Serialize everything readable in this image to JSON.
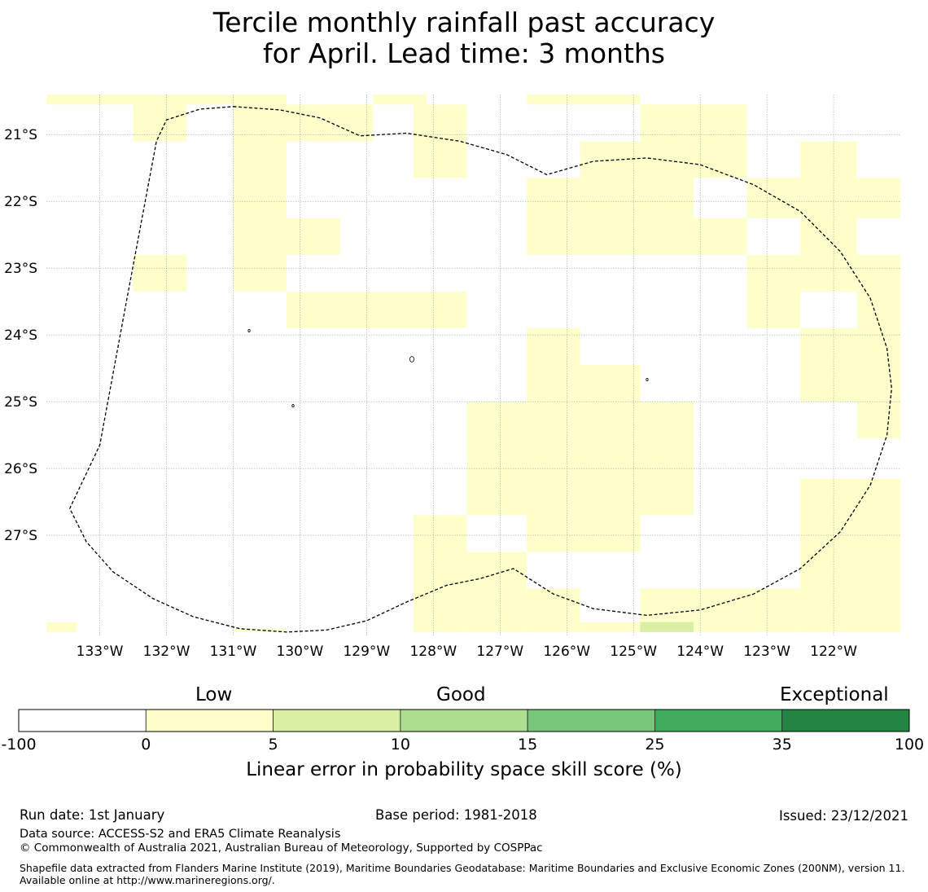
{
  "title": {
    "line1": "Tercile monthly rainfall past accuracy",
    "line2": "for April. Lead time: 3 months"
  },
  "map": {
    "lon_range": [
      -133.8,
      -121.0
    ],
    "lat_range": [
      -28.5,
      -20.4
    ],
    "lat_ticks": [
      {
        "value": -21,
        "label": "21°S"
      },
      {
        "value": -22,
        "label": "22°S"
      },
      {
        "value": -23,
        "label": "23°S"
      },
      {
        "value": -24,
        "label": "24°S"
      },
      {
        "value": -25,
        "label": "25°S"
      },
      {
        "value": -26,
        "label": "26°S"
      },
      {
        "value": -27,
        "label": "27°S"
      }
    ],
    "lon_ticks": [
      {
        "value": -133,
        "label": "133°W"
      },
      {
        "value": -132,
        "label": "132°W"
      },
      {
        "value": -131,
        "label": "131°W"
      },
      {
        "value": -130,
        "label": "130°W"
      },
      {
        "value": -129,
        "label": "129°W"
      },
      {
        "value": -128,
        "label": "128°W"
      },
      {
        "value": -127,
        "label": "127°W"
      },
      {
        "value": -126,
        "label": "126°W"
      },
      {
        "value": -125,
        "label": "125°W"
      },
      {
        "value": -124,
        "label": "124°W"
      },
      {
        "value": -123,
        "label": "123°W"
      },
      {
        "value": -122,
        "label": "122°W"
      }
    ],
    "low_cells": [
      [
        -133.8,
        -131.0,
        -20.55,
        -20.4
      ],
      [
        -132.5,
        -131.7,
        -21.1,
        -20.55
      ],
      [
        -131.0,
        -130.2,
        -23.35,
        -20.4
      ],
      [
        -130.2,
        -128.9,
        -21.1,
        -20.55
      ],
      [
        -130.2,
        -129.4,
        -22.8,
        -22.25
      ],
      [
        -128.9,
        -128.1,
        -20.55,
        -20.4
      ],
      [
        -128.3,
        -127.5,
        -21.65,
        -20.55
      ],
      [
        -126.6,
        -124.9,
        -20.55,
        -20.4
      ],
      [
        -124.9,
        -123.3,
        -21.65,
        -20.55
      ],
      [
        -125.8,
        -124.9,
        -21.65,
        -21.1
      ],
      [
        -126.6,
        -124.1,
        -22.8,
        -21.65
      ],
      [
        -124.1,
        -123.3,
        -22.8,
        -22.25
      ],
      [
        -123.3,
        -122.5,
        -22.25,
        -21.65
      ],
      [
        -122.5,
        -121.65,
        -23.35,
        -21.1
      ],
      [
        -121.65,
        -121.0,
        -22.25,
        -21.65
      ],
      [
        -123.3,
        -122.5,
        -23.9,
        -22.8
      ],
      [
        -122.5,
        -121.0,
        -23.35,
        -22.8
      ],
      [
        -122.5,
        -121.0,
        -25.0,
        -23.9
      ],
      [
        -121.65,
        -121.0,
        -25.55,
        -23.35
      ],
      [
        -132.5,
        -131.7,
        -23.35,
        -22.8
      ],
      [
        -130.2,
        -127.5,
        -23.9,
        -23.35
      ],
      [
        -126.6,
        -125.8,
        -25.0,
        -23.9
      ],
      [
        -125.8,
        -124.9,
        -25.0,
        -24.45
      ],
      [
        -127.5,
        -124.1,
        -26.1,
        -25.0
      ],
      [
        -127.5,
        -124.1,
        -26.7,
        -26.1
      ],
      [
        -126.6,
        -124.9,
        -27.25,
        -26.7
      ],
      [
        -127.5,
        -126.6,
        -26.7,
        -26.7
      ],
      [
        -128.3,
        -127.5,
        -28.45,
        -26.7
      ],
      [
        -127.5,
        -126.6,
        -28.45,
        -27.25
      ],
      [
        -126.6,
        -125.8,
        -28.45,
        -27.8
      ],
      [
        -125.8,
        -124.9,
        -28.45,
        -28.3
      ],
      [
        -124.9,
        -122.5,
        -28.45,
        -27.8
      ],
      [
        -122.5,
        -121.0,
        -28.45,
        -26.15
      ],
      [
        -133.8,
        -133.35,
        -28.45,
        -28.3
      ],
      [
        -131.0,
        -130.2,
        -28.45,
        -28.4
      ]
    ],
    "good_cells": [
      [
        -124.9,
        -124.1,
        -28.45,
        -28.3
      ]
    ],
    "eez_boundary": [
      [
        -131.0,
        -20.58
      ],
      [
        -130.3,
        -20.63
      ],
      [
        -129.7,
        -20.75
      ],
      [
        -129.1,
        -21.02
      ],
      [
        -128.4,
        -20.98
      ],
      [
        -127.6,
        -21.1
      ],
      [
        -126.9,
        -21.3
      ],
      [
        -126.3,
        -21.6
      ],
      [
        -125.6,
        -21.4
      ],
      [
        -124.8,
        -21.35
      ],
      [
        -124.0,
        -21.45
      ],
      [
        -123.2,
        -21.75
      ],
      [
        -122.5,
        -22.15
      ],
      [
        -121.9,
        -22.75
      ],
      [
        -121.45,
        -23.45
      ],
      [
        -121.2,
        -24.2
      ],
      [
        -121.13,
        -24.8
      ],
      [
        -121.2,
        -25.5
      ],
      [
        -121.45,
        -26.25
      ],
      [
        -121.9,
        -26.95
      ],
      [
        -122.5,
        -27.5
      ],
      [
        -123.2,
        -27.88
      ],
      [
        -124.0,
        -28.12
      ],
      [
        -124.8,
        -28.2
      ],
      [
        -125.6,
        -28.1
      ],
      [
        -126.2,
        -27.88
      ],
      [
        -126.8,
        -27.5
      ],
      [
        -127.3,
        -27.65
      ],
      [
        -127.8,
        -27.75
      ],
      [
        -128.4,
        -28.0
      ],
      [
        -129.0,
        -28.28
      ],
      [
        -129.6,
        -28.42
      ],
      [
        -130.2,
        -28.45
      ],
      [
        -130.9,
        -28.4
      ],
      [
        -131.6,
        -28.22
      ],
      [
        -132.2,
        -27.95
      ],
      [
        -132.8,
        -27.55
      ],
      [
        -133.2,
        -27.1
      ],
      [
        -133.45,
        -26.6
      ],
      [
        -133.0,
        -25.65
      ],
      [
        -132.6,
        -23.5
      ],
      [
        -132.15,
        -21.1
      ],
      [
        -132.0,
        -20.78
      ],
      [
        -131.5,
        -20.62
      ],
      [
        -131.0,
        -20.58
      ]
    ]
  },
  "colorbar": {
    "boundaries": [
      "-100",
      "0",
      "5",
      "10",
      "15",
      "25",
      "35",
      "100"
    ],
    "colors": [
      "#ffffff",
      "#ffffcc",
      "#d9f0a3",
      "#addd8e",
      "#78c679",
      "#41ab5d",
      "#238443"
    ],
    "categories": [
      {
        "label": "Low"
      },
      {
        "label": "Good"
      },
      {
        "label": "Exceptional"
      }
    ],
    "caption": "Linear error in probability space skill score (%)"
  },
  "footer": {
    "run_date": "Run date: 1st January",
    "base_period": "Base period: 1981-2018",
    "issued": "Issued: 23/12/2021",
    "data_source": "Data source: ACCESS-S2 and ERA5 Climate Reanalysis",
    "copyright": "© Commonwealth of Australia 2021, Australian Bureau of Meteorology, Supported by COSPPac",
    "shapefile": "Shapefile data extracted from Flanders Marine Institute (2019), Maritime Boundaries Geodatabase: Maritime Boundaries and Exclusive Economic Zones (200NM), version 11. Available online at http://www.marineregions.org/."
  }
}
